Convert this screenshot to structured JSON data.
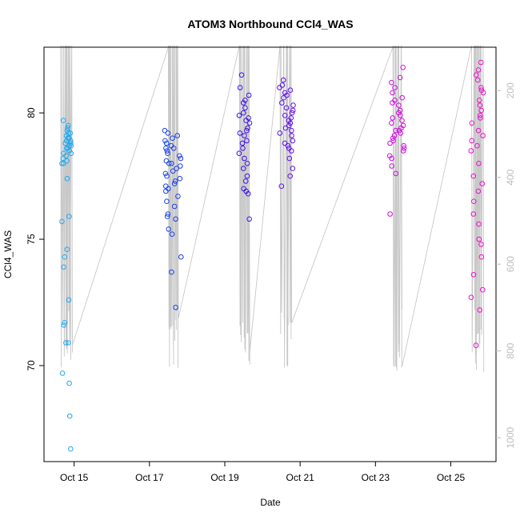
{
  "chart_data": {
    "type": "scatter",
    "title": "ATOM3 Northbound CCl4_WAS",
    "xlabel": "Date",
    "ylabel": "CCl4_WAS",
    "x_ticks": [
      "Oct 15",
      "Oct 17",
      "Oct 19",
      "Oct 21",
      "Oct 23",
      "Oct 25"
    ],
    "x_tick_days": [
      15,
      17,
      19,
      21,
      23,
      25
    ],
    "xlim": [
      14.2,
      26.2
    ],
    "ylim": [
      66.2,
      82.6
    ],
    "y_ticks": [
      70,
      75,
      80
    ],
    "secondary_axis": {
      "label": "",
      "ticks": [
        200,
        400,
        600,
        800,
        1000
      ],
      "range_top": 100,
      "range_bottom": 1055,
      "color": "#bdbdbd"
    },
    "grid": false,
    "legend": "none",
    "point_color_scale": [
      "#22aaee",
      "#1155ee",
      "#3311ee",
      "#7711ee",
      "#cc11dd",
      "#ee11cc"
    ],
    "line_color": "#c8c8c8",
    "flights": [
      {
        "day": 14.8,
        "spread": 0.13,
        "points": [
          78.6,
          79.2,
          78.8,
          78.4,
          79.0,
          78.2,
          78.9,
          79.3,
          78.5,
          78.7,
          79.1,
          78.0,
          78.3,
          79.7,
          79.5,
          78.1,
          77.4,
          78.6,
          79.0,
          78.8,
          75.9,
          75.7,
          74.3,
          74.6,
          73.9,
          72.6,
          71.7,
          71.6,
          70.9,
          70.9,
          69.7,
          69.3,
          68.0,
          66.7,
          78.9,
          79.2,
          78.4,
          78.0,
          78.7,
          79.4
        ]
      },
      {
        "day": 17.62,
        "spread": 0.22,
        "points": [
          77.8,
          78.3,
          78.9,
          77.5,
          76.9,
          78.1,
          78.6,
          79.3,
          77.2,
          77.9,
          78.4,
          76.5,
          76.0,
          75.8,
          75.4,
          75.2,
          74.3,
          73.7,
          72.3,
          79.1,
          78.7,
          78.0,
          77.6,
          77.0,
          76.7,
          78.2,
          78.5,
          77.4,
          77.7,
          78.8,
          79.2,
          76.3,
          75.9,
          77.1,
          78.0,
          77.3,
          78.6,
          79.0
        ]
      },
      {
        "day": 19.52,
        "spread": 0.14,
        "points": [
          79.6,
          79.2,
          80.0,
          78.8,
          78.4,
          79.9,
          80.4,
          81.0,
          81.5,
          80.7,
          78.0,
          77.5,
          77.0,
          76.8,
          75.8,
          79.4,
          79.7,
          80.2,
          78.6,
          77.8,
          78.2,
          79.1,
          80.5,
          79.3,
          76.9,
          77.3,
          78.9,
          79.8
        ]
      },
      {
        "day": 20.62,
        "spread": 0.2,
        "points": [
          79.8,
          80.3,
          80.8,
          79.4,
          78.9,
          80.1,
          80.6,
          81.0,
          81.3,
          79.1,
          78.6,
          78.2,
          77.8,
          77.5,
          77.1,
          80.4,
          79.6,
          79.2,
          80.0,
          80.9,
          78.7,
          79.5,
          80.2,
          79.9,
          78.5,
          80.7,
          79.3,
          81.1,
          79.7,
          78.8
        ]
      },
      {
        "day": 23.58,
        "spread": 0.2,
        "points": [
          79.3,
          79.8,
          80.3,
          78.9,
          78.5,
          80.6,
          81.0,
          81.4,
          81.8,
          79.6,
          79.1,
          78.7,
          78.3,
          77.9,
          77.6,
          76.0,
          80.1,
          79.5,
          80.8,
          79.0,
          78.6,
          79.9,
          80.4,
          81.2,
          79.3,
          78.8,
          79.7,
          80.0,
          79.4,
          78.2,
          80.5,
          79.2
        ]
      },
      {
        "day": 25.7,
        "spread": 0.18,
        "points": [
          80.8,
          81.3,
          81.7,
          82.0,
          80.3,
          79.8,
          79.3,
          78.9,
          78.5,
          78.0,
          77.5,
          76.9,
          76.5,
          76.0,
          75.6,
          75.0,
          74.3,
          73.6,
          73.0,
          72.7,
          72.2,
          70.8,
          81.0,
          80.5,
          80.1,
          79.6,
          79.1,
          78.7,
          80.9,
          81.5,
          77.2,
          74.8,
          79.9
        ]
      }
    ]
  }
}
